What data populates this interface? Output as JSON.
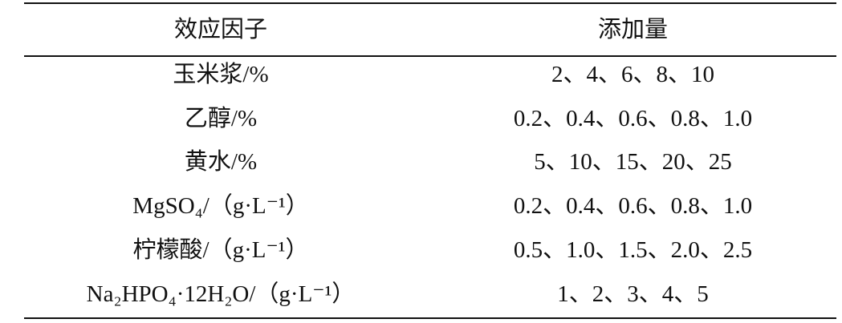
{
  "table": {
    "header": [
      "效应因子",
      "添加量"
    ],
    "rows": [
      [
        "玉米浆/%",
        "2、4、6、8、10"
      ],
      [
        "乙醇/%",
        "0.2、0.4、0.6、0.8、1.0"
      ],
      [
        "黄水/%",
        "5、10、15、20、25"
      ],
      [
        "MgSO₄/（g·L⁻¹）",
        "0.2、0.4、0.6、0.8、1.0"
      ],
      [
        "柠檬酸/（g·L⁻¹）",
        "0.5、1.0、1.5、2.0、2.5"
      ],
      [
        "Na₂HPO₄·12H₂O/（g·L⁻¹）",
        "1、2、3、4、5"
      ]
    ]
  }
}
